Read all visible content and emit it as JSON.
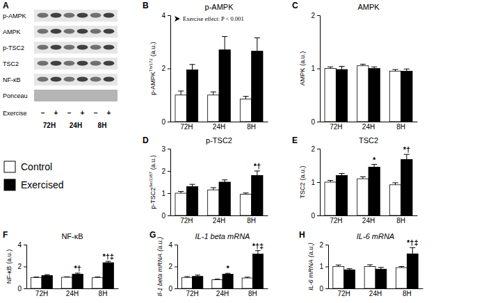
{
  "blot": {
    "panel": "A",
    "rows": [
      "p-AMPK",
      "AMPK",
      "p-TSC2",
      "TSC2",
      "NF-κB",
      "Ponceau"
    ],
    "exercise_label": "Exercise",
    "signs": [
      "–",
      "+",
      "–",
      "+",
      "–",
      "+"
    ],
    "times": [
      "72H",
      "24H",
      "8H"
    ]
  },
  "chart_data": [
    {
      "type": "bar",
      "panel": "B",
      "title": "p-AMPK",
      "ylabel": "p-AMPK",
      "ylabel_sup": "Thr172",
      "ylabel_unit": "(a.u.)",
      "annotation": "Exercise effect: P < 0.001",
      "categories": [
        "72H",
        "24H",
        "8H"
      ],
      "ylim": [
        0,
        4
      ],
      "yticks": [
        0,
        2,
        4
      ],
      "series": [
        {
          "name": "Control",
          "color": "#ffffff",
          "values": [
            1.0,
            1.0,
            0.85
          ],
          "errors": [
            0.15,
            0.12,
            0.1
          ],
          "annotations": [
            null,
            null,
            null
          ]
        },
        {
          "name": "Exercised",
          "color": "#000000",
          "values": [
            1.95,
            2.7,
            2.65
          ],
          "errors": [
            0.2,
            0.5,
            0.5
          ],
          "annotations": [
            null,
            null,
            null
          ]
        }
      ]
    },
    {
      "type": "bar",
      "panel": "C",
      "title": "AMPK",
      "ylabel": "AMPK",
      "ylabel_sup": null,
      "ylabel_unit": "(a.u.)",
      "categories": [
        "72H",
        "24H",
        "8H"
      ],
      "ylim": [
        0,
        2
      ],
      "yticks": [
        0,
        1,
        2
      ],
      "series": [
        {
          "name": "Control",
          "color": "#ffffff",
          "values": [
            1.0,
            1.05,
            0.95
          ],
          "errors": [
            0.03,
            0.03,
            0.03
          ],
          "annotations": [
            null,
            null,
            null
          ]
        },
        {
          "name": "Exercised",
          "color": "#000000",
          "values": [
            0.98,
            1.0,
            0.95
          ],
          "errors": [
            0.06,
            0.03,
            0.04
          ],
          "annotations": [
            null,
            null,
            null
          ]
        }
      ]
    },
    {
      "type": "bar",
      "panel": "D",
      "title": "p-TSC2",
      "ylabel": "p-TSC2",
      "ylabel_sup": "Ser1387",
      "ylabel_unit": "(a.u.)",
      "categories": [
        "72H",
        "24H",
        "8H"
      ],
      "ylim": [
        0,
        3
      ],
      "yticks": [
        0,
        1,
        2,
        3
      ],
      "series": [
        {
          "name": "Control",
          "color": "#ffffff",
          "values": [
            1.0,
            1.15,
            0.95
          ],
          "errors": [
            0.08,
            0.1,
            0.06
          ],
          "annotations": [
            null,
            null,
            null
          ]
        },
        {
          "name": "Exercised",
          "color": "#000000",
          "values": [
            1.3,
            1.5,
            1.8
          ],
          "errors": [
            0.1,
            0.1,
            0.2
          ],
          "annotations": [
            null,
            null,
            "*†"
          ]
        }
      ]
    },
    {
      "type": "bar",
      "panel": "E",
      "title": "TSC2",
      "ylabel": "TSC2",
      "ylabel_sup": null,
      "ylabel_unit": "(a.u.)",
      "categories": [
        "72H",
        "24H",
        "8H"
      ],
      "ylim": [
        0,
        2
      ],
      "yticks": [
        0,
        1,
        2
      ],
      "series": [
        {
          "name": "Control",
          "color": "#ffffff",
          "values": [
            1.0,
            1.1,
            0.92
          ],
          "errors": [
            0.05,
            0.06,
            0.06
          ],
          "annotations": [
            null,
            null,
            null
          ]
        },
        {
          "name": "Exercised",
          "color": "#000000",
          "values": [
            1.2,
            1.45,
            1.68
          ],
          "errors": [
            0.06,
            0.08,
            0.15
          ],
          "annotations": [
            null,
            "*",
            "*†"
          ]
        }
      ]
    },
    {
      "type": "bar",
      "panel": "F",
      "title": "NF-κB",
      "ylabel": "NF-κB",
      "ylabel_sup": null,
      "ylabel_unit": "(a.u.)",
      "categories": [
        "72H",
        "24H",
        "8H"
      ],
      "ylim": [
        0,
        4
      ],
      "yticks": [
        0,
        2,
        4
      ],
      "series": [
        {
          "name": "Control",
          "color": "#ffffff",
          "values": [
            1.0,
            1.02,
            1.0
          ],
          "errors": [
            0.04,
            0.04,
            0.04
          ],
          "annotations": [
            null,
            null,
            null
          ]
        },
        {
          "name": "Exercised",
          "color": "#000000",
          "values": [
            1.18,
            1.3,
            2.35
          ],
          "errors": [
            0.08,
            0.1,
            0.12
          ],
          "annotations": [
            null,
            "*†",
            "*†‡"
          ]
        }
      ]
    },
    {
      "type": "bar",
      "panel": "G",
      "title": "IL-1 beta mRNA",
      "ylabel": "Il-1 beta mRNA",
      "ylabel_sup": null,
      "ylabel_unit": "(a.u.)",
      "categories": [
        "72H",
        "24H",
        "8H"
      ],
      "ylim": [
        0,
        4
      ],
      "yticks": [
        0,
        2,
        4
      ],
      "series": [
        {
          "name": "Control",
          "color": "#ffffff",
          "values": [
            1.0,
            0.8,
            0.95
          ],
          "errors": [
            0.08,
            0.05,
            0.08
          ],
          "annotations": [
            null,
            null,
            null
          ]
        },
        {
          "name": "Exercised",
          "color": "#000000",
          "values": [
            1.1,
            1.3,
            3.15
          ],
          "errors": [
            0.12,
            0.08,
            0.3
          ],
          "annotations": [
            null,
            "*",
            "*†‡"
          ]
        }
      ]
    },
    {
      "type": "bar",
      "panel": "H",
      "title": "IL-6 mRNA",
      "ylabel": "IL-6 mRNA",
      "ylabel_sup": null,
      "ylabel_unit": "(a.u.)",
      "categories": [
        "72H",
        "24H",
        "8H"
      ],
      "ylim": [
        0,
        2
      ],
      "yticks": [
        0,
        1,
        2
      ],
      "series": [
        {
          "name": "Control",
          "color": "#ffffff",
          "values": [
            1.0,
            1.0,
            0.95
          ],
          "errors": [
            0.07,
            0.08,
            0.05
          ],
          "annotations": [
            null,
            null,
            null
          ]
        },
        {
          "name": "Exercised",
          "color": "#000000",
          "values": [
            0.85,
            0.88,
            1.58
          ],
          "errors": [
            0.05,
            0.08,
            0.28
          ],
          "annotations": [
            null,
            null,
            "*†‡"
          ]
        }
      ]
    }
  ]
}
